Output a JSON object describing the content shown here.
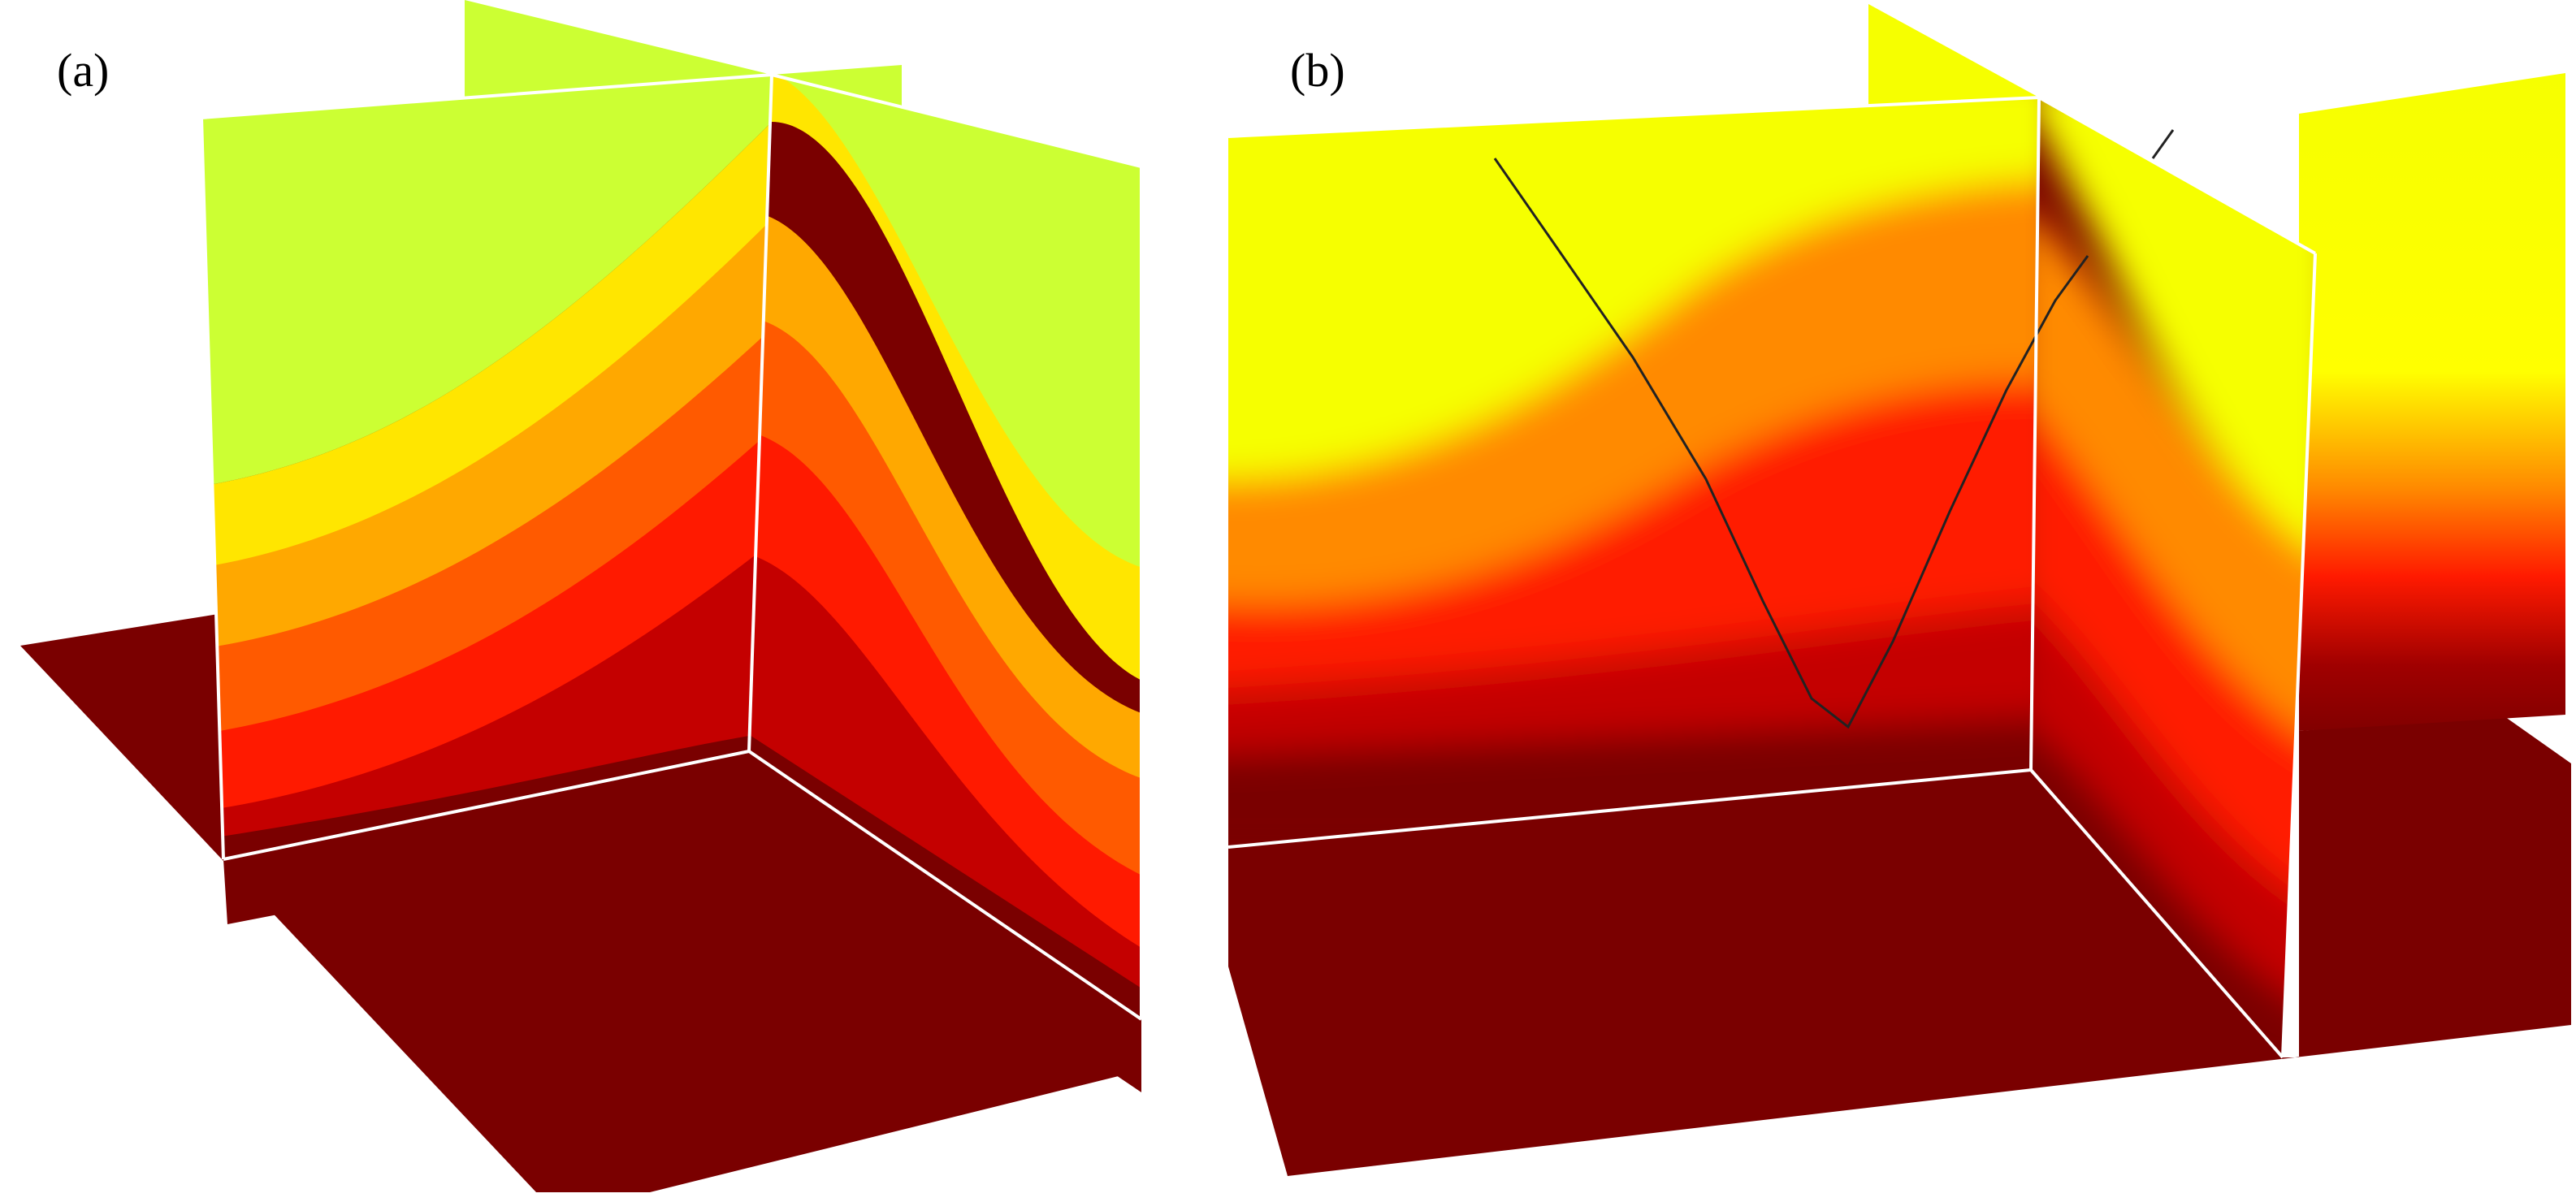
{
  "panels": [
    {
      "id": "a",
      "label": "(a)"
    },
    {
      "id": "b",
      "label": "(b)"
    }
  ],
  "colors": {
    "dark_red": "#7a0000",
    "red_dark": "#c40000",
    "red": "#ff1a00",
    "orange_red": "#ff5a00",
    "orange": "#ffa800",
    "yellow": "#ffe600",
    "pale_green": "#ccff33",
    "bright_yellow": "#f6ff00",
    "edge": "#ffffff",
    "curve": "#222222"
  }
}
